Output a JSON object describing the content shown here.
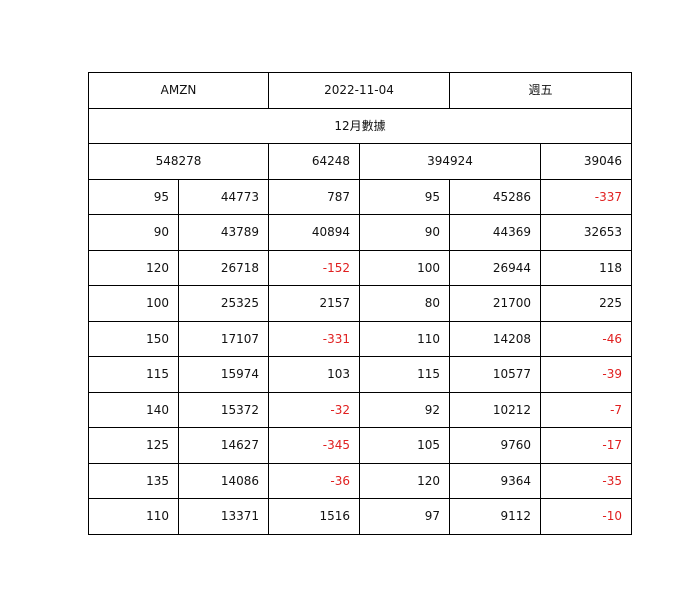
{
  "header": {
    "ticker": "AMZN",
    "date": "2022-11-04",
    "weekday": "週五"
  },
  "subtitle": "12月數據",
  "summary": {
    "a": "548278",
    "b": "64248",
    "c": "394924",
    "d": "39046"
  },
  "columns": [
    "c1",
    "c2",
    "c3",
    "c4",
    "c5",
    "c6"
  ],
  "rows": [
    [
      "95",
      "44773",
      "787",
      "95",
      "45286",
      "-337"
    ],
    [
      "90",
      "43789",
      "40894",
      "90",
      "44369",
      "32653"
    ],
    [
      "120",
      "26718",
      "-152",
      "100",
      "26944",
      "118"
    ],
    [
      "100",
      "25325",
      "2157",
      "80",
      "21700",
      "225"
    ],
    [
      "150",
      "17107",
      "-331",
      "110",
      "14208",
      "-46"
    ],
    [
      "115",
      "15974",
      "103",
      "115",
      "10577",
      "-39"
    ],
    [
      "140",
      "15372",
      "-32",
      "92",
      "10212",
      "-7"
    ],
    [
      "125",
      "14627",
      "-345",
      "105",
      "9760",
      "-17"
    ],
    [
      "135",
      "14086",
      "-36",
      "120",
      "9364",
      "-35"
    ],
    [
      "110",
      "13371",
      "1516",
      "97",
      "9112",
      "-10"
    ]
  ],
  "colors": {
    "negative": "#e02020",
    "text": "#111111",
    "border": "#000000"
  }
}
